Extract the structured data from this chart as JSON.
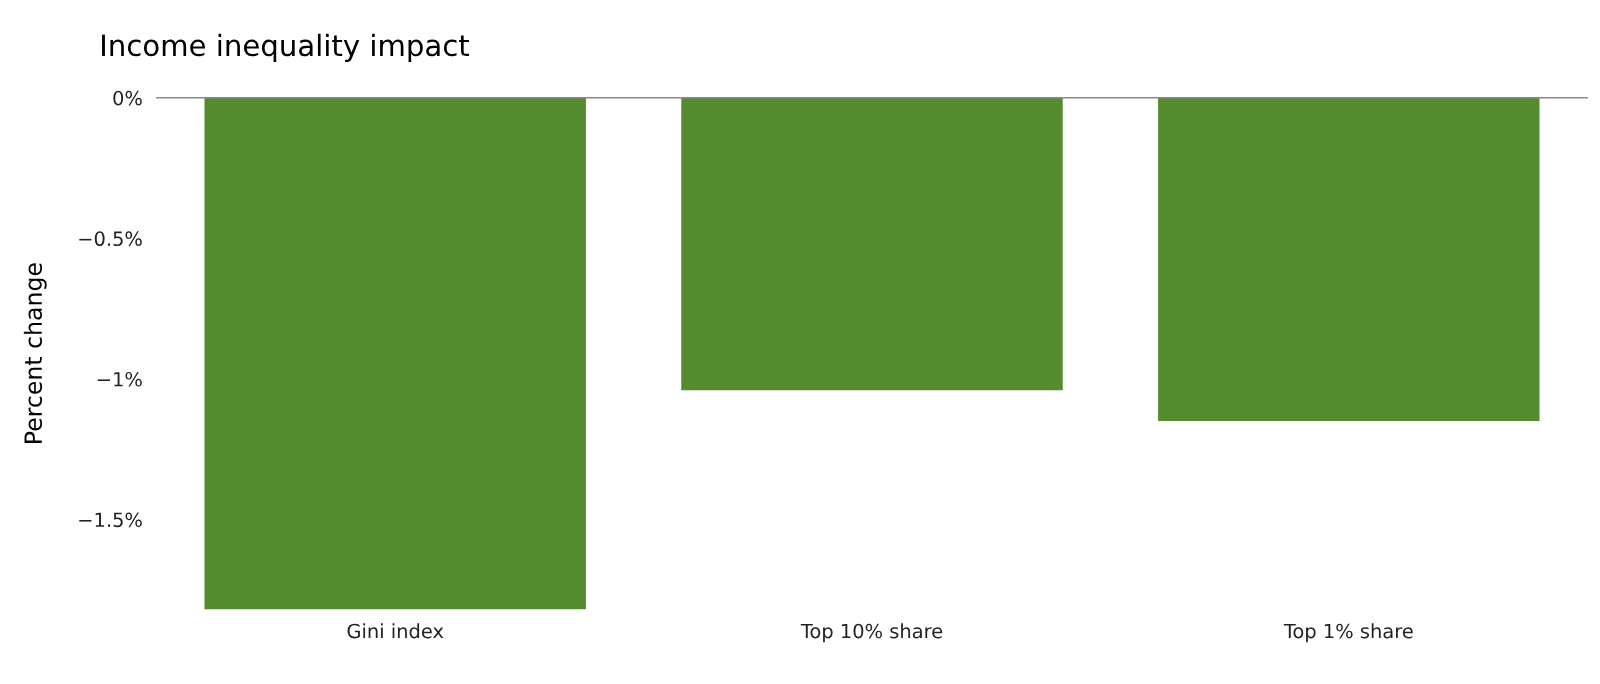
{
  "chart_data": {
    "type": "bar",
    "title": "Income inequality impact",
    "ylabel": "Percent change",
    "categories": [
      "Gini index",
      "Top 10% share",
      "Top 1% share"
    ],
    "values": [
      -1.82,
      -1.04,
      -1.15
    ],
    "color": "#548b2f",
    "yticks": [
      {
        "value": 0,
        "label": "0%"
      },
      {
        "value": -0.5,
        "label": "−0.5%"
      },
      {
        "value": -1,
        "label": "−1%"
      },
      {
        "value": -1.5,
        "label": "−1.5%"
      }
    ],
    "ylim": [
      -1.82,
      0
    ],
    "grid": false,
    "legend": false
  }
}
